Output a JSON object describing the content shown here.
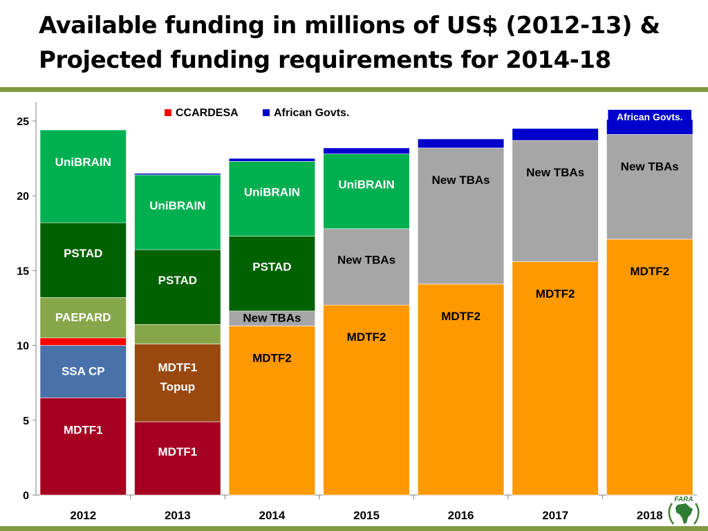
{
  "header": {
    "title_line1": "Available funding in millions of US$ (2012-13) &",
    "title_line2": "Projected funding requirements for 2014-18"
  },
  "logo": {
    "text": "FARA",
    "icon": "africa-map-logo-icon"
  },
  "chart_data": {
    "type": "bar",
    "stacked": true,
    "categories": [
      "2012",
      "2013",
      "2014",
      "2015",
      "2016",
      "2017",
      "2018"
    ],
    "ylim": [
      0,
      25
    ],
    "yticks": [
      "0",
      "5",
      "10",
      "15",
      "20",
      "25"
    ],
    "legend": {
      "placement": "top",
      "entries": [
        {
          "name": "CCARDESA",
          "color": "#ff0000"
        },
        {
          "name": "African Govts.",
          "color": "#0000cc"
        }
      ]
    },
    "series": [
      {
        "name": "MDTF1",
        "color": "#a50021",
        "values": [
          6.5,
          4.9,
          0,
          0,
          0,
          0,
          0
        ]
      },
      {
        "name": "SSA CP",
        "color": "#4a72aa",
        "values": [
          3.5,
          0,
          0,
          0,
          0,
          0,
          0
        ]
      },
      {
        "name": "MDTF1 Topup",
        "color": "#994810",
        "values": [
          0,
          5.2,
          0,
          0,
          0,
          0,
          0
        ]
      },
      {
        "name": "MDTF2",
        "color": "#ff9900",
        "values": [
          0,
          0,
          11.3,
          12.7,
          14.1,
          15.6,
          17.1
        ]
      },
      {
        "name": "CCARDESA",
        "color": "#ff0000",
        "values": [
          0.5,
          0,
          0,
          0,
          0,
          0,
          0
        ]
      },
      {
        "name": "PAEPARD",
        "color": "#86a64a",
        "values": [
          2.7,
          1.3,
          0,
          0,
          0,
          0,
          0
        ]
      },
      {
        "name": "New TBAs",
        "color": "#a6a6a6",
        "values": [
          0,
          0,
          1.0,
          5.1,
          9.1,
          8.1,
          7.0
        ]
      },
      {
        "name": "PSTAD",
        "color": "#006100",
        "values": [
          5.0,
          5.0,
          5.0,
          0,
          0,
          0,
          0
        ]
      },
      {
        "name": "UniBRAIN",
        "color": "#00b050",
        "values": [
          6.2,
          5.0,
          5.0,
          5.0,
          0,
          0,
          0
        ]
      },
      {
        "name": "African Govts.",
        "color": "#0000cc",
        "values": [
          0,
          0.1,
          0.2,
          0.4,
          0.6,
          0.8,
          1.0
        ]
      }
    ],
    "segment_labels": [
      {
        "label": "MDTF1",
        "series": "MDTF1",
        "category": "2012"
      },
      {
        "label": "SSA CP",
        "series": "SSA CP",
        "category": "2012"
      },
      {
        "label": "PAEPARD",
        "series": "PAEPARD",
        "category": "2012"
      },
      {
        "label": "PSTAD",
        "series": "PSTAD",
        "category": "2012"
      },
      {
        "label": "UniBRAIN",
        "series": "UniBRAIN",
        "category": "2012"
      },
      {
        "label": "MDTF1",
        "series": "MDTF1",
        "category": "2013"
      },
      {
        "label": "MDTF1 Topup",
        "series": "MDTF1 Topup",
        "category": "2013"
      },
      {
        "label": "PSTAD",
        "series": "PSTAD",
        "category": "2013"
      },
      {
        "label": "UniBRAIN",
        "series": "UniBRAIN",
        "category": "2013"
      },
      {
        "label": "MDTF2",
        "series": "MDTF2",
        "category": "2014"
      },
      {
        "label": "New TBAs",
        "series": "New TBAs",
        "category": "2014"
      },
      {
        "label": "PSTAD",
        "series": "PSTAD",
        "category": "2014"
      },
      {
        "label": "UniBRAIN",
        "series": "UniBRAIN",
        "category": "2014"
      },
      {
        "label": "MDTF2",
        "series": "MDTF2",
        "category": "2015"
      },
      {
        "label": "New TBAs",
        "series": "New TBAs",
        "category": "2015"
      },
      {
        "label": "UniBRAIN",
        "series": "UniBRAIN",
        "category": "2015"
      },
      {
        "label": "MDTF2",
        "series": "MDTF2",
        "category": "2016"
      },
      {
        "label": "New TBAs",
        "series": "New TBAs",
        "category": "2016"
      },
      {
        "label": "MDTF2",
        "series": "MDTF2",
        "category": "2017"
      },
      {
        "label": "New TBAs",
        "series": "New TBAs",
        "category": "2017"
      },
      {
        "label": "MDTF2",
        "series": "MDTF2",
        "category": "2018"
      },
      {
        "label": "New TBAs",
        "series": "New TBAs",
        "category": "2018"
      },
      {
        "label": "African Govts.",
        "series": "African Govts.",
        "category": "2018"
      }
    ]
  }
}
